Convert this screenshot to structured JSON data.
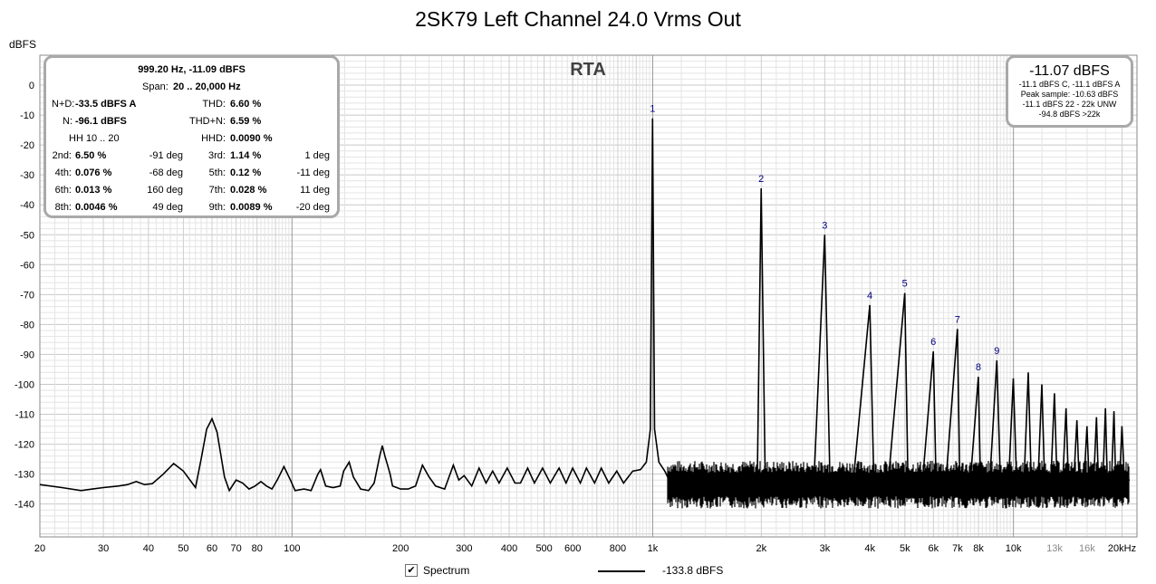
{
  "title": "2SK79 Left Channel 24.0 Vrms Out",
  "colors": {
    "trace": "#000000",
    "grid_major": "#9a9a9a",
    "grid_minor": "#e4e4e4",
    "harmonic_label": "#000080",
    "box_border": "#a9a9a9",
    "background": "#ffffff"
  },
  "stats": {
    "header": "999.20 Hz, -11.09 dBFS",
    "span_label": "Span:",
    "span_value": "20 .. 20,000 Hz",
    "nd_label": "N+D:",
    "nd_value": "-33.5 dBFS A",
    "thd_label": "THD:",
    "thd_value": "6.60 %",
    "n_label": "N:",
    "n_value": "-96.1 dBFS",
    "thdn_label": "THD+N:",
    "thdn_value": "6.59 %",
    "hh_label": "HH 10 .. 20",
    "hhd_label": "HHD:",
    "hhd_value": "0.0090 %",
    "harmonics": [
      {
        "l1": "2nd:",
        "v1": "6.50 %",
        "d1": "-91 deg",
        "l2": "3rd:",
        "v2": "1.14 %",
        "d2": "1 deg"
      },
      {
        "l1": "4th:",
        "v1": "0.076 %",
        "d1": "-68 deg",
        "l2": "5th:",
        "v2": "0.12 %",
        "d2": "-11 deg"
      },
      {
        "l1": "6th:",
        "v1": "0.013 %",
        "d1": "160 deg",
        "l2": "7th:",
        "v2": "0.028 %",
        "d2": "11 deg"
      },
      {
        "l1": "8th:",
        "v1": "0.0046 %",
        "d1": "49 deg",
        "l2": "9th:",
        "v2": "0.0089 %",
        "d2": "-20 deg"
      }
    ]
  },
  "peak_box": {
    "main": "-11.07 dBFS",
    "lines": [
      "-11.1 dBFS C, -11.1 dBFS A",
      "Peak sample: -10.63 dBFS",
      "-11.1 dBFS 22 - 22k UNW",
      "-94.8 dBFS >22k"
    ]
  },
  "legend": {
    "checkbox_checked": true,
    "label": "Spectrum",
    "value": "-133.8 dBFS"
  },
  "chart_data": {
    "type": "line",
    "title": "2SK79 Left Channel 24.0 Vrms Out",
    "subtitle": "RTA",
    "xlabel": "Hz",
    "ylabel": "dBFS",
    "xscale": "log",
    "xlim": [
      20,
      22000
    ],
    "ylim": [
      -151,
      10
    ],
    "grid": true,
    "x_tick_labels": [
      {
        "v": 20,
        "t": "20"
      },
      {
        "v": 30,
        "t": "30"
      },
      {
        "v": 40,
        "t": "40"
      },
      {
        "v": 50,
        "t": "50"
      },
      {
        "v": 60,
        "t": "60"
      },
      {
        "v": 70,
        "t": "70"
      },
      {
        "v": 80,
        "t": "80"
      },
      {
        "v": 100,
        "t": "100"
      },
      {
        "v": 200,
        "t": "200"
      },
      {
        "v": 300,
        "t": "300"
      },
      {
        "v": 400,
        "t": "400"
      },
      {
        "v": 500,
        "t": "500"
      },
      {
        "v": 600,
        "t": "600"
      },
      {
        "v": 800,
        "t": "800"
      },
      {
        "v": 1000,
        "t": "1k"
      },
      {
        "v": 2000,
        "t": "2k"
      },
      {
        "v": 3000,
        "t": "3k"
      },
      {
        "v": 4000,
        "t": "4k"
      },
      {
        "v": 5000,
        "t": "5k"
      },
      {
        "v": 6000,
        "t": "6k"
      },
      {
        "v": 7000,
        "t": "7k"
      },
      {
        "v": 8000,
        "t": "8k"
      },
      {
        "v": 10000,
        "t": "10k"
      },
      {
        "v": 13000,
        "t": "13k"
      },
      {
        "v": 16000,
        "t": "16k"
      },
      {
        "v": 20000,
        "t": "20kHz"
      }
    ],
    "y_ticks": [
      0,
      -10,
      -20,
      -30,
      -40,
      -50,
      -60,
      -70,
      -80,
      -90,
      -100,
      -110,
      -120,
      -130,
      -140
    ],
    "series": [
      {
        "values": [
          [
            20,
            -133.5
          ],
          [
            23,
            -134.5
          ],
          [
            26,
            -135.5
          ],
          [
            28,
            -135
          ],
          [
            30,
            -134.5
          ],
          [
            33,
            -134
          ],
          [
            35,
            -133.5
          ],
          [
            37,
            -132.5
          ],
          [
            39,
            -133.5
          ],
          [
            41,
            -133.2
          ],
          [
            44,
            -130
          ],
          [
            47,
            -126.5
          ],
          [
            50,
            -129
          ],
          [
            54,
            -134.5
          ],
          [
            56,
            -125
          ],
          [
            58,
            -115
          ],
          [
            60,
            -111.5
          ],
          [
            62,
            -116
          ],
          [
            65,
            -131
          ],
          [
            67,
            -135.5
          ],
          [
            70,
            -132
          ],
          [
            73,
            -133
          ],
          [
            76,
            -135
          ],
          [
            79,
            -134
          ],
          [
            82,
            -132.5
          ],
          [
            85,
            -134
          ],
          [
            88,
            -135
          ],
          [
            91,
            -132
          ],
          [
            95,
            -127.5
          ],
          [
            99,
            -132
          ],
          [
            102,
            -135.5
          ],
          [
            108,
            -135
          ],
          [
            113,
            -135.5
          ],
          [
            118,
            -130
          ],
          [
            120,
            -128.5
          ],
          [
            124,
            -134
          ],
          [
            130,
            -134.5
          ],
          [
            136,
            -134
          ],
          [
            139,
            -129
          ],
          [
            144,
            -126
          ],
          [
            148,
            -131
          ],
          [
            155,
            -135
          ],
          [
            163,
            -135.5
          ],
          [
            169,
            -133
          ],
          [
            175,
            -124
          ],
          [
            178,
            -120.5
          ],
          [
            181,
            -124
          ],
          [
            184,
            -127
          ],
          [
            187,
            -130
          ],
          [
            190,
            -134
          ],
          [
            200,
            -135
          ],
          [
            210,
            -135
          ],
          [
            220,
            -134
          ],
          [
            230,
            -127
          ],
          [
            240,
            -131
          ],
          [
            250,
            -134
          ],
          [
            265,
            -135
          ],
          [
            280,
            -127
          ],
          [
            290,
            -132
          ],
          [
            300,
            -130.5
          ],
          [
            315,
            -134
          ],
          [
            330,
            -128
          ],
          [
            345,
            -133
          ],
          [
            360,
            -129
          ],
          [
            375,
            -133
          ],
          [
            395,
            -128
          ],
          [
            415,
            -133
          ],
          [
            430,
            -133
          ],
          [
            450,
            -128
          ],
          [
            470,
            -133
          ],
          [
            495,
            -128
          ],
          [
            520,
            -133
          ],
          [
            550,
            -128
          ],
          [
            575,
            -133
          ],
          [
            600,
            -128
          ],
          [
            630,
            -133
          ],
          [
            655,
            -128
          ],
          [
            690,
            -133
          ],
          [
            720,
            -128
          ],
          [
            755,
            -133
          ],
          [
            795,
            -129
          ],
          [
            830,
            -133
          ],
          [
            880,
            -129
          ],
          [
            925,
            -128.5
          ],
          [
            960,
            -126
          ],
          [
            985,
            -115
          ],
          [
            999,
            -11.09
          ],
          [
            1012,
            -115
          ],
          [
            1040,
            -126
          ],
          [
            1080,
            -129
          ],
          [
            1100,
            -131
          ],
          [
            1200,
            -131
          ],
          [
            1400,
            -131
          ],
          [
            1700,
            -131
          ],
          [
            1950,
            -130
          ],
          [
            1998,
            -34.5
          ],
          [
            2050,
            -131
          ],
          [
            2400,
            -132
          ],
          [
            2800,
            -132
          ],
          [
            2998,
            -50
          ],
          [
            3100,
            -132
          ],
          [
            3600,
            -132
          ],
          [
            3997,
            -73.5
          ],
          [
            4100,
            -132
          ],
          [
            4500,
            -132
          ],
          [
            4996,
            -69.5
          ],
          [
            5100,
            -132
          ],
          [
            5600,
            -132
          ],
          [
            5995,
            -89
          ],
          [
            6100,
            -132
          ],
          [
            6500,
            -132
          ],
          [
            6994,
            -81.5
          ],
          [
            7100,
            -132
          ],
          [
            7600,
            -132
          ],
          [
            7994,
            -97.5
          ],
          [
            8100,
            -132
          ],
          [
            8600,
            -132
          ],
          [
            8993,
            -92
          ],
          [
            9200,
            -132
          ],
          [
            9700,
            -132
          ],
          [
            9992,
            -98
          ],
          [
            10200,
            -132
          ],
          [
            10700,
            -132
          ],
          [
            10990,
            -96
          ],
          [
            11200,
            -132
          ],
          [
            11700,
            -132
          ],
          [
            11990,
            -100
          ],
          [
            12200,
            -132
          ],
          [
            12700,
            -132
          ],
          [
            12990,
            -103
          ],
          [
            13200,
            -132
          ],
          [
            13700,
            -132
          ],
          [
            13990,
            -108
          ],
          [
            14200,
            -132
          ],
          [
            14700,
            -132
          ],
          [
            14990,
            -112
          ],
          [
            15200,
            -132
          ],
          [
            15700,
            -132
          ],
          [
            15990,
            -114
          ],
          [
            16200,
            -132
          ],
          [
            16700,
            -132
          ],
          [
            16990,
            -111
          ],
          [
            17200,
            -132
          ],
          [
            17700,
            -132
          ],
          [
            17990,
            -108
          ],
          [
            18200,
            -132
          ],
          [
            18700,
            -132
          ],
          [
            18990,
            -109
          ],
          [
            19200,
            -132
          ],
          [
            19700,
            -132
          ],
          [
            19990,
            -114
          ],
          [
            20300,
            -132
          ],
          [
            20800,
            -132
          ],
          [
            21000,
            -132
          ]
        ]
      }
    ],
    "noise_band": {
      "x_start": 1100,
      "x_end": 21000,
      "top": -127.5,
      "bottom": -137.5
    },
    "harmonic_markers": [
      {
        "label": "1",
        "x": 999,
        "y": -11.09
      },
      {
        "label": "2",
        "x": 1998,
        "y": -34.5
      },
      {
        "label": "3",
        "x": 2998,
        "y": -50
      },
      {
        "label": "4",
        "x": 3997,
        "y": -73.5
      },
      {
        "label": "5",
        "x": 4996,
        "y": -69.5
      },
      {
        "label": "6",
        "x": 5995,
        "y": -89
      },
      {
        "label": "7",
        "x": 6994,
        "y": -81.5
      },
      {
        "label": "8",
        "x": 7994,
        "y": -97.5
      },
      {
        "label": "9",
        "x": 8993,
        "y": -92
      }
    ]
  }
}
